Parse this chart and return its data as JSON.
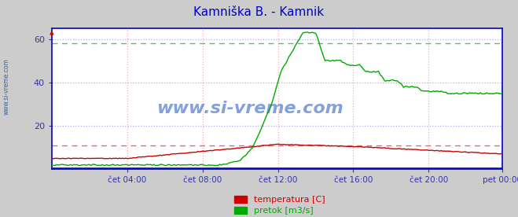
{
  "title": "Kamniška B. - Kamnik",
  "title_color": "#0000cc",
  "fig_bg_color": "#cccccc",
  "plot_bg_color": "#ffffff",
  "ylabel_color": "#3333aa",
  "xlabel_color": "#3333aa",
  "ylim": [
    0,
    65
  ],
  "yticks": [
    20,
    40,
    60
  ],
  "xtick_labels": [
    "čet 04:00",
    "čet 08:00",
    "čet 12:00",
    "čet 16:00",
    "čet 20:00",
    "pet 00:00"
  ],
  "n_points": 288,
  "temp_ref_line": 11.0,
  "flow_ref_line": 58.0,
  "watermark": "www.si-vreme.com",
  "legend_temp_label": "temperatura [C]",
  "legend_flow_label": "pretok [m3/s]",
  "line_color_temp": "#cc0000",
  "line_color_flow": "#00aa00",
  "line_color_height": "#0000cc",
  "ref_line_color_temp": "#ee6666",
  "ref_line_color_flow": "#66bb66",
  "grid_v_color": "#ffaaaa",
  "grid_h_color": "#aaaaff",
  "spine_color": "#0000cc",
  "sidebar_text": "www.si-vreme.com",
  "sidebar_color": "#3366aa"
}
